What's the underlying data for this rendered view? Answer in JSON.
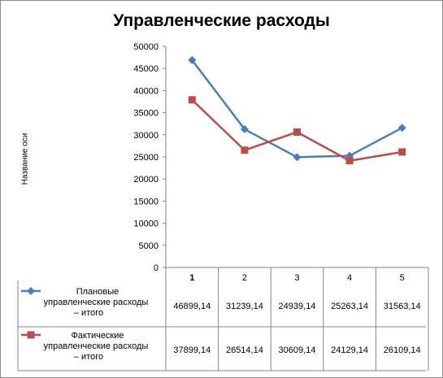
{
  "chart_data": {
    "type": "line",
    "title": "Управленческие расходы",
    "ylabel": "Название оси",
    "xlabel": "",
    "categories": [
      "1",
      "2",
      "3",
      "4",
      "5"
    ],
    "ylim": [
      0,
      50000
    ],
    "yticks": [
      "0",
      "5000",
      "10000",
      "15000",
      "20000",
      "25000",
      "30000",
      "35000",
      "40000",
      "45000",
      "50000"
    ],
    "grid": false,
    "legend": "data-table",
    "series": [
      {
        "name": "Плановые управленческие расходы – итого",
        "values": [
          46899.14,
          31239.14,
          24939.14,
          25263.14,
          31563.14
        ],
        "labels": [
          "46899,14",
          "31239,14",
          "24939,14",
          "25263,14",
          "31563,14"
        ],
        "color": "#4a7ebb",
        "marker": "diamond"
      },
      {
        "name": "Фактические управленческие расходы – итого",
        "values": [
          37899.14,
          26514.14,
          30609.14,
          24129.14,
          26109.14
        ],
        "labels": [
          "37899,14",
          "26514,14",
          "30609,14",
          "24129,14",
          "26109,14"
        ],
        "color": "#be4b48",
        "marker": "square"
      }
    ]
  }
}
